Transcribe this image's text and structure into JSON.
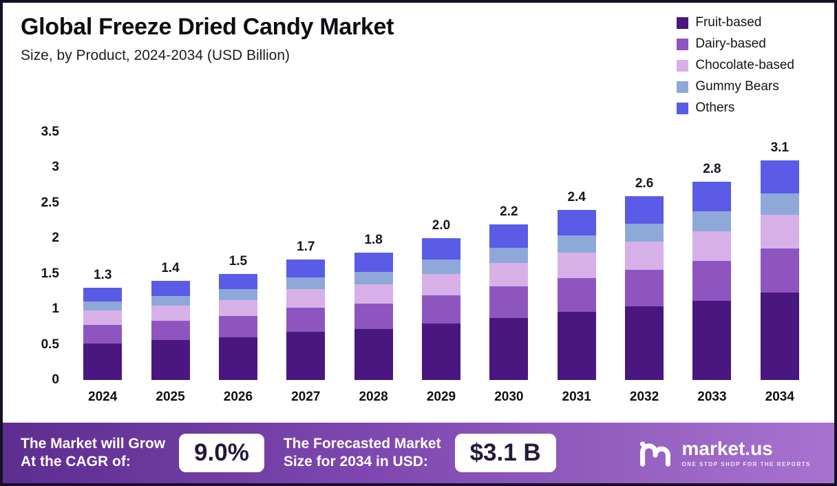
{
  "header": {
    "title": "Global Freeze Dried Candy Market",
    "subtitle": "Size, by Product, 2024-2034 (USD Billion)"
  },
  "chart_data": {
    "type": "bar",
    "stacked": true,
    "title": "Global Freeze Dried Candy Market",
    "subtitle": "Size, by Product, 2024-2034 (USD Billion)",
    "xlabel": "",
    "ylabel": "USD Billion",
    "ylim": [
      0,
      3.5
    ],
    "grid": false,
    "legend_position": "top-right",
    "categories": [
      "2024",
      "2025",
      "2026",
      "2027",
      "2028",
      "2029",
      "2030",
      "2031",
      "2032",
      "2033",
      "2034"
    ],
    "yticks": [
      "0",
      "0.5",
      "1",
      "1.5",
      "2",
      "2.5",
      "3",
      "3.5"
    ],
    "totals": [
      "1.3",
      "1.4",
      "1.5",
      "1.7",
      "1.8",
      "2.0",
      "2.2",
      "2.4",
      "2.6",
      "2.8",
      "3.1"
    ],
    "series": [
      {
        "name": "Fruit-based",
        "color": "#4a1680",
        "values": [
          0.52,
          0.56,
          0.6,
          0.68,
          0.72,
          0.8,
          0.88,
          0.96,
          1.04,
          1.12,
          1.24
        ]
      },
      {
        "name": "Dairy-based",
        "color": "#8e55c1",
        "values": [
          0.26,
          0.28,
          0.3,
          0.34,
          0.36,
          0.4,
          0.44,
          0.48,
          0.52,
          0.56,
          0.62
        ]
      },
      {
        "name": "Chocolate-based",
        "color": "#d8b0e8",
        "values": [
          0.2,
          0.21,
          0.23,
          0.26,
          0.27,
          0.3,
          0.33,
          0.36,
          0.39,
          0.42,
          0.47
        ]
      },
      {
        "name": "Gummy Bears",
        "color": "#8ea9d8",
        "values": [
          0.13,
          0.14,
          0.15,
          0.17,
          0.18,
          0.2,
          0.22,
          0.24,
          0.26,
          0.28,
          0.31
        ]
      },
      {
        "name": "Others",
        "color": "#5a5be6",
        "values": [
          0.19,
          0.21,
          0.22,
          0.25,
          0.27,
          0.3,
          0.33,
          0.36,
          0.39,
          0.42,
          0.46
        ]
      }
    ]
  },
  "footer": {
    "cagr_label_line1": "The Market will Grow",
    "cagr_label_line2": "At the CAGR of:",
    "cagr_value": "9.0%",
    "forecast_label_line1": "The Forecasted Market",
    "forecast_label_line2": "Size for 2034 in USD:",
    "forecast_value": "$3.1 B",
    "logo_text": "market.us",
    "logo_tagline": "ONE STOP SHOP FOR THE REPORTS"
  }
}
